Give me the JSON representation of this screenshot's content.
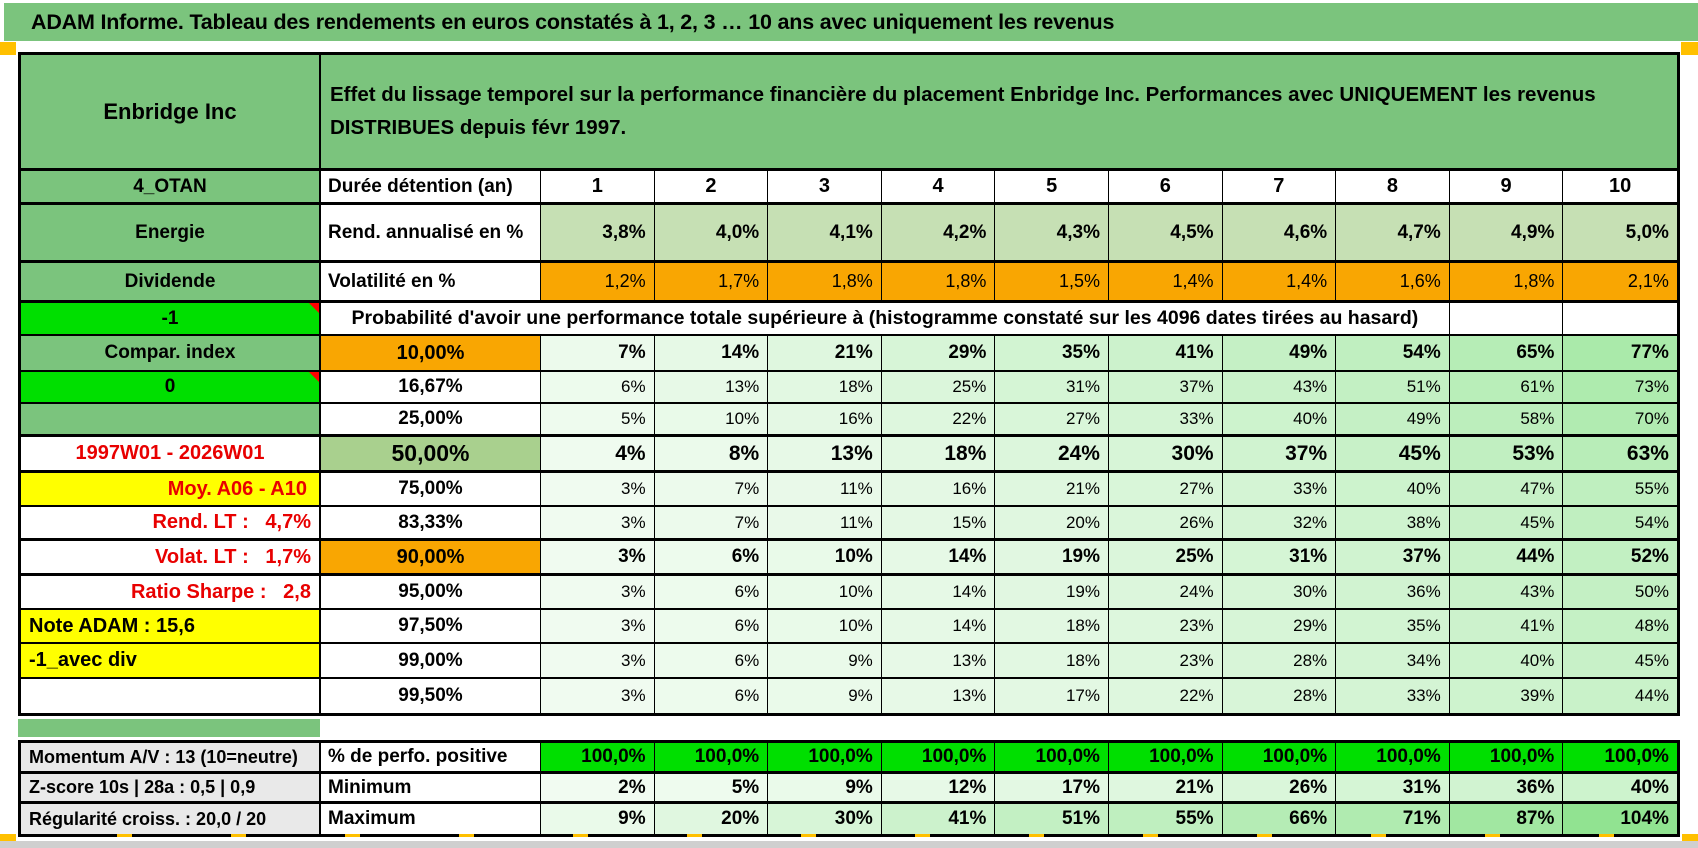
{
  "title": "ADAM Informe. Tableau des rendements en euros constatés à 1, 2, 3 … 10 ans avec uniquement les revenus",
  "header": {
    "instrument": "Enbridge Inc",
    "description_line1": "Effet du lissage temporel sur la performance financière du placement Enbridge Inc. Performances avec UNIQUEMENT les revenus",
    "description_line2": "DISTRIBUES depuis févr 1997."
  },
  "colors": {
    "band_green": "#7BC47D",
    "bright_green": "#00DF00",
    "orange": "#F9A602",
    "light_green_fill": "#C6E0B4",
    "mid_green_fill": "#A9D08E",
    "yellow": "#FFFF00",
    "gray_fill": "#E9E9E9",
    "red_text": "#E80000",
    "marker_orange": "#FFC000",
    "comment_marker": "red-triangle-icon"
  },
  "grid": {
    "rows": [
      {
        "label": "4_OTAN",
        "ls": "green",
        "c": "Durée détention (an)",
        "cs": "hleft",
        "values": [
          "1",
          "2",
          "3",
          "4",
          "5",
          "6",
          "7",
          "8",
          "9",
          "10"
        ],
        "vs": "duree",
        "tb": true
      },
      {
        "label": "Energie",
        "ls": "green",
        "c": "Rend. annualisé en %",
        "cs": "hleft",
        "values": [
          "3,8%",
          "4,0%",
          "4,1%",
          "4,2%",
          "4,3%",
          "4,5%",
          "4,6%",
          "4,7%",
          "4,9%",
          "5,0%"
        ],
        "vs": "rend",
        "tb": true
      },
      {
        "label": "Dividende",
        "ls": "green",
        "c": "Volatilité en %",
        "cs": "hleft",
        "values": [
          "1,2%",
          "1,7%",
          "1,8%",
          "1,8%",
          "1,5%",
          "1,4%",
          "1,4%",
          "1,6%",
          "1,8%",
          "2,1%"
        ],
        "vs": "volat",
        "tb": true
      },
      {
        "label": "-1",
        "ls": "bright",
        "note": true,
        "merged": "Probabilité d'avoir une performance totale supérieure à (histogramme constaté sur les 4096 dates tirées au hasard)"
      },
      {
        "label": "Compar. index",
        "ls": "green",
        "c": "10,00%",
        "cs": "orange",
        "values": [
          7,
          14,
          21,
          29,
          35,
          41,
          49,
          54,
          65,
          77
        ],
        "vs": "scale-bold"
      },
      {
        "label": "0",
        "ls": "bright",
        "note": true,
        "c": "16,67%",
        "cs": "pct",
        "values": [
          6,
          13,
          18,
          25,
          31,
          37,
          43,
          51,
          61,
          73
        ],
        "vs": "scale"
      },
      {
        "label": "",
        "ls": "green",
        "c": "25,00%",
        "cs": "pct",
        "values": [
          5,
          10,
          16,
          22,
          27,
          33,
          40,
          49,
          58,
          70
        ],
        "vs": "scale",
        "tb": true
      },
      {
        "label": "1997W01 - 2026W01",
        "ls": "redc",
        "c": "50,00%",
        "cs": "green-big",
        "values": [
          4,
          8,
          13,
          18,
          24,
          30,
          37,
          45,
          53,
          63
        ],
        "vs": "scale-big",
        "tb": true
      },
      {
        "label": "Moy. A06 - A10",
        "ls": "yellow-red",
        "c": "75,00%",
        "cs": "pct",
        "values": [
          3,
          7,
          11,
          16,
          21,
          27,
          33,
          40,
          47,
          55
        ],
        "vs": "scale"
      },
      {
        "label": "Rend. LT :   4,7%",
        "ls": "red-right",
        "c": "83,33%",
        "cs": "pct",
        "values": [
          3,
          7,
          11,
          15,
          20,
          26,
          32,
          38,
          45,
          54
        ],
        "vs": "scale",
        "tb": true
      },
      {
        "label": "Volat. LT :   1,7%",
        "ls": "red-right",
        "c": "90,00%",
        "cs": "orange",
        "values": [
          3,
          6,
          10,
          14,
          19,
          25,
          31,
          37,
          44,
          52
        ],
        "vs": "scale-bold",
        "tb": true
      },
      {
        "label": "Ratio Sharpe :   2,8",
        "ls": "red-right",
        "c": "95,00%",
        "cs": "pct",
        "values": [
          3,
          6,
          10,
          14,
          19,
          24,
          30,
          36,
          43,
          50
        ],
        "vs": "scale"
      },
      {
        "label": "Note ADAM : 15,6",
        "ls": "yellow-left",
        "c": "97,50%",
        "cs": "pct",
        "values": [
          3,
          6,
          10,
          14,
          18,
          23,
          29,
          35,
          41,
          48
        ],
        "vs": "scale"
      },
      {
        "label": "-1_avec div",
        "ls": "yellow-left",
        "c": "99,00%",
        "cs": "pct",
        "values": [
          3,
          6,
          9,
          13,
          18,
          23,
          28,
          34,
          40,
          45
        ],
        "vs": "scale"
      },
      {
        "label": "",
        "ls": "plain",
        "c": "99,50%",
        "cs": "pct",
        "values": [
          3,
          6,
          9,
          13,
          17,
          22,
          28,
          33,
          39,
          44
        ],
        "vs": "scale"
      }
    ]
  },
  "bottom": {
    "rows": [
      {
        "label": "Momentum A/V : 13 (10=neutre)",
        "c": "% de perfo. positive",
        "values": [
          "100,0%",
          "100,0%",
          "100,0%",
          "100,0%",
          "100,0%",
          "100,0%",
          "100,0%",
          "100,0%",
          "100,0%",
          "100,0%"
        ],
        "vs": "bright"
      },
      {
        "label": "Z-score 10s | 28a : 0,5 | 0,9",
        "c": "Minimum",
        "values": [
          2,
          5,
          9,
          12,
          17,
          21,
          26,
          31,
          36,
          40
        ],
        "vs": "scale-bold"
      },
      {
        "label": "Régularité croiss. : 20,0 / 20",
        "c": "Maximum",
        "values": [
          9,
          20,
          30,
          41,
          51,
          55,
          66,
          71,
          87,
          104
        ],
        "vs": "scale-bold"
      }
    ]
  }
}
